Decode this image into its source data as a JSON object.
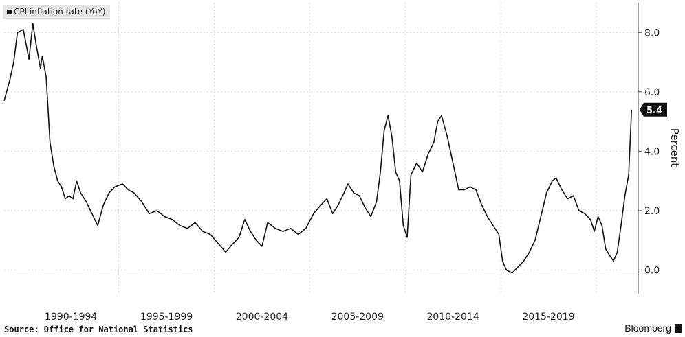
{
  "legend": {
    "label": "CPI inflation rate (YoY)"
  },
  "footer": {
    "source": "Source: Office for National Statistics",
    "brand": "Bloomberg"
  },
  "chart_data": {
    "type": "line",
    "ylabel": "Percent",
    "y_axis_side": "right",
    "ylim": [
      -0.8,
      9.0
    ],
    "yticks": [
      0.0,
      2.0,
      4.0,
      6.0,
      8.0
    ],
    "ytick_labels": [
      "0.0",
      "2.0",
      "4.0",
      "6.0",
      "8.0"
    ],
    "x_period_labels": [
      "1990-1994",
      "1995-1999",
      "2000-2004",
      "2005-2009",
      "2010-2014",
      "2015-2019"
    ],
    "grid": true,
    "legend_position": "top-left",
    "last_value_label": "5.4",
    "series": [
      {
        "name": "CPI inflation rate (YoY)",
        "color": "#111111",
        "x": [
          1989.0,
          1989.3,
          1989.5,
          1989.7,
          1990.0,
          1990.3,
          1990.5,
          1990.7,
          1990.9,
          1991.0,
          1991.2,
          1991.4,
          1991.6,
          1991.8,
          1992.0,
          1992.2,
          1992.4,
          1992.6,
          1992.8,
          1993.0,
          1993.3,
          1993.6,
          1993.9,
          1994.2,
          1994.5,
          1994.8,
          1995.2,
          1995.5,
          1995.8,
          1996.2,
          1996.6,
          1997.0,
          1997.4,
          1997.8,
          1998.2,
          1998.6,
          1999.0,
          1999.4,
          1999.8,
          2000.2,
          2000.6,
          2001.0,
          2001.3,
          2001.6,
          2001.9,
          2002.2,
          2002.5,
          2002.8,
          2003.2,
          2003.6,
          2004.0,
          2004.4,
          2004.8,
          2005.2,
          2005.6,
          2005.9,
          2006.2,
          2006.5,
          2006.8,
          2007.0,
          2007.3,
          2007.6,
          2007.9,
          2008.2,
          2008.5,
          2008.7,
          2008.9,
          2009.1,
          2009.3,
          2009.5,
          2009.7,
          2009.9,
          2010.1,
          2010.3,
          2010.6,
          2010.9,
          2011.2,
          2011.5,
          2011.7,
          2011.9,
          2012.2,
          2012.5,
          2012.8,
          2013.1,
          2013.4,
          2013.7,
          2014.0,
          2014.3,
          2014.6,
          2014.9,
          2015.1,
          2015.3,
          2015.6,
          2015.9,
          2016.2,
          2016.5,
          2016.8,
          2017.1,
          2017.4,
          2017.7,
          2017.9,
          2018.2,
          2018.5,
          2018.8,
          2019.1,
          2019.4,
          2019.7,
          2019.9,
          2020.1,
          2020.3,
          2020.5,
          2020.7,
          2020.9,
          2021.1,
          2021.3,
          2021.5,
          2021.7,
          2021.85
        ],
        "y": [
          5.7,
          6.4,
          7.0,
          8.0,
          8.1,
          7.1,
          8.3,
          7.5,
          6.8,
          7.2,
          6.5,
          4.3,
          3.5,
          3.0,
          2.8,
          2.4,
          2.5,
          2.4,
          3.0,
          2.6,
          2.3,
          1.9,
          1.5,
          2.2,
          2.6,
          2.8,
          2.9,
          2.7,
          2.6,
          2.3,
          1.9,
          2.0,
          1.8,
          1.7,
          1.5,
          1.4,
          1.6,
          1.3,
          1.2,
          0.9,
          0.6,
          0.9,
          1.1,
          1.7,
          1.3,
          1.0,
          0.8,
          1.6,
          1.4,
          1.3,
          1.4,
          1.2,
          1.4,
          1.9,
          2.2,
          2.4,
          1.9,
          2.2,
          2.6,
          2.9,
          2.6,
          2.5,
          2.1,
          1.8,
          2.3,
          3.3,
          4.7,
          5.2,
          4.5,
          3.3,
          3.0,
          1.5,
          1.1,
          3.2,
          3.6,
          3.3,
          3.9,
          4.3,
          5.0,
          5.2,
          4.5,
          3.6,
          2.7,
          2.7,
          2.8,
          2.7,
          2.2,
          1.8,
          1.5,
          1.2,
          0.3,
          0.0,
          -0.1,
          0.1,
          0.3,
          0.6,
          1.0,
          1.8,
          2.6,
          3.0,
          3.1,
          2.7,
          2.4,
          2.5,
          2.0,
          1.9,
          1.7,
          1.3,
          1.8,
          1.5,
          0.7,
          0.5,
          0.3,
          0.6,
          1.5,
          2.5,
          3.2,
          5.4
        ]
      }
    ]
  }
}
